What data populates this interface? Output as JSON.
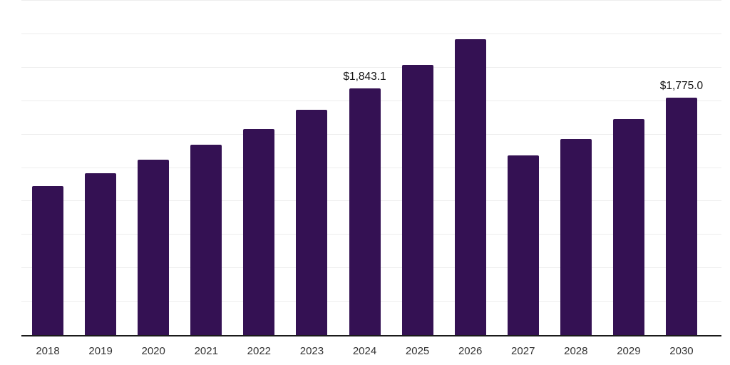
{
  "chart_data": {
    "type": "bar",
    "title": "",
    "xlabel": "",
    "ylabel": "",
    "categories": [
      "2018",
      "2019",
      "2020",
      "2021",
      "2022",
      "2023",
      "2024",
      "2025",
      "2026",
      "2027",
      "2028",
      "2029",
      "2030"
    ],
    "values": [
      1115,
      1211,
      1313,
      1425,
      1542,
      1686,
      1843.1,
      2022,
      2212,
      1342,
      1467,
      1617,
      1775
    ],
    "labeled_points": [
      {
        "category": "2024",
        "label": "$1,843.1"
      },
      {
        "category": "2030",
        "label": "$1,775.0"
      }
    ],
    "ylim": [
      0,
      2500
    ],
    "gridline_step": 250,
    "grid": "horizontal-only",
    "legend": "none",
    "colors": {
      "bar": "#341153",
      "gridline": "#ededed",
      "axis_line": "#1a1a1a",
      "value_label": "#111111",
      "tick_label": "#333333",
      "background": "#ffffff"
    }
  }
}
